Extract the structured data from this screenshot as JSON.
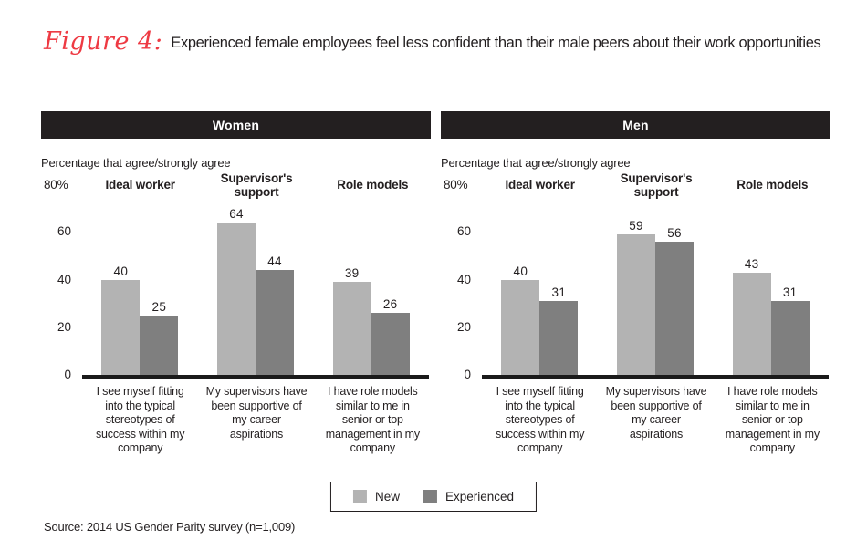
{
  "figure": {
    "label": "Figure 4:",
    "title": "Experienced female employees feel less confident than their male peers about their work opportunities"
  },
  "chart_data": [
    {
      "type": "bar",
      "title": "Women",
      "axis_note": "Percentage that agree/strongly agree",
      "ylim": [
        0,
        80
      ],
      "y_axis": {
        "top_label": "80%",
        "ticks": [
          60,
          40,
          20,
          0
        ]
      },
      "group_titles": [
        "Ideal worker",
        "Supervisor's support",
        "Role models"
      ],
      "categories": [
        "I see myself fitting into the typical stereotypes of success within my company",
        "My supervisors have been supportive of my career aspirations",
        "I have role models similar to me in senior or top management in my company"
      ],
      "series": [
        {
          "name": "New",
          "color": "#b3b3b3",
          "values": [
            40,
            64,
            39
          ]
        },
        {
          "name": "Experienced",
          "color": "#7f7f7f",
          "values": [
            25,
            44,
            26
          ]
        }
      ],
      "legend_position": "bottom",
      "grid": false
    },
    {
      "type": "bar",
      "title": "Men",
      "axis_note": "Percentage that agree/strongly agree",
      "ylim": [
        0,
        80
      ],
      "y_axis": {
        "top_label": "80%",
        "ticks": [
          60,
          40,
          20,
          0
        ]
      },
      "group_titles": [
        "Ideal worker",
        "Supervisor's support",
        "Role models"
      ],
      "categories": [
        "I see myself fitting into the typical stereotypes of success within my company",
        "My supervisors have been supportive of my career aspirations",
        "I have role models similar to me in senior or top management in my company"
      ],
      "series": [
        {
          "name": "New",
          "color": "#b3b3b3",
          "values": [
            40,
            59,
            43
          ]
        },
        {
          "name": "Experienced",
          "color": "#7f7f7f",
          "values": [
            31,
            56,
            31
          ]
        }
      ],
      "legend_position": "bottom",
      "grid": false
    }
  ],
  "legend": {
    "items": [
      {
        "label": "New",
        "color": "#b3b3b3"
      },
      {
        "label": "Experienced",
        "color": "#7f7f7f"
      }
    ]
  },
  "source": "Source: 2014 US Gender Parity survey (n=1,009)",
  "colors": {
    "accent_red": "#ee3a43",
    "header_bar": "#231f20",
    "axis_line": "#1a1a1a",
    "text": "#231f20"
  }
}
